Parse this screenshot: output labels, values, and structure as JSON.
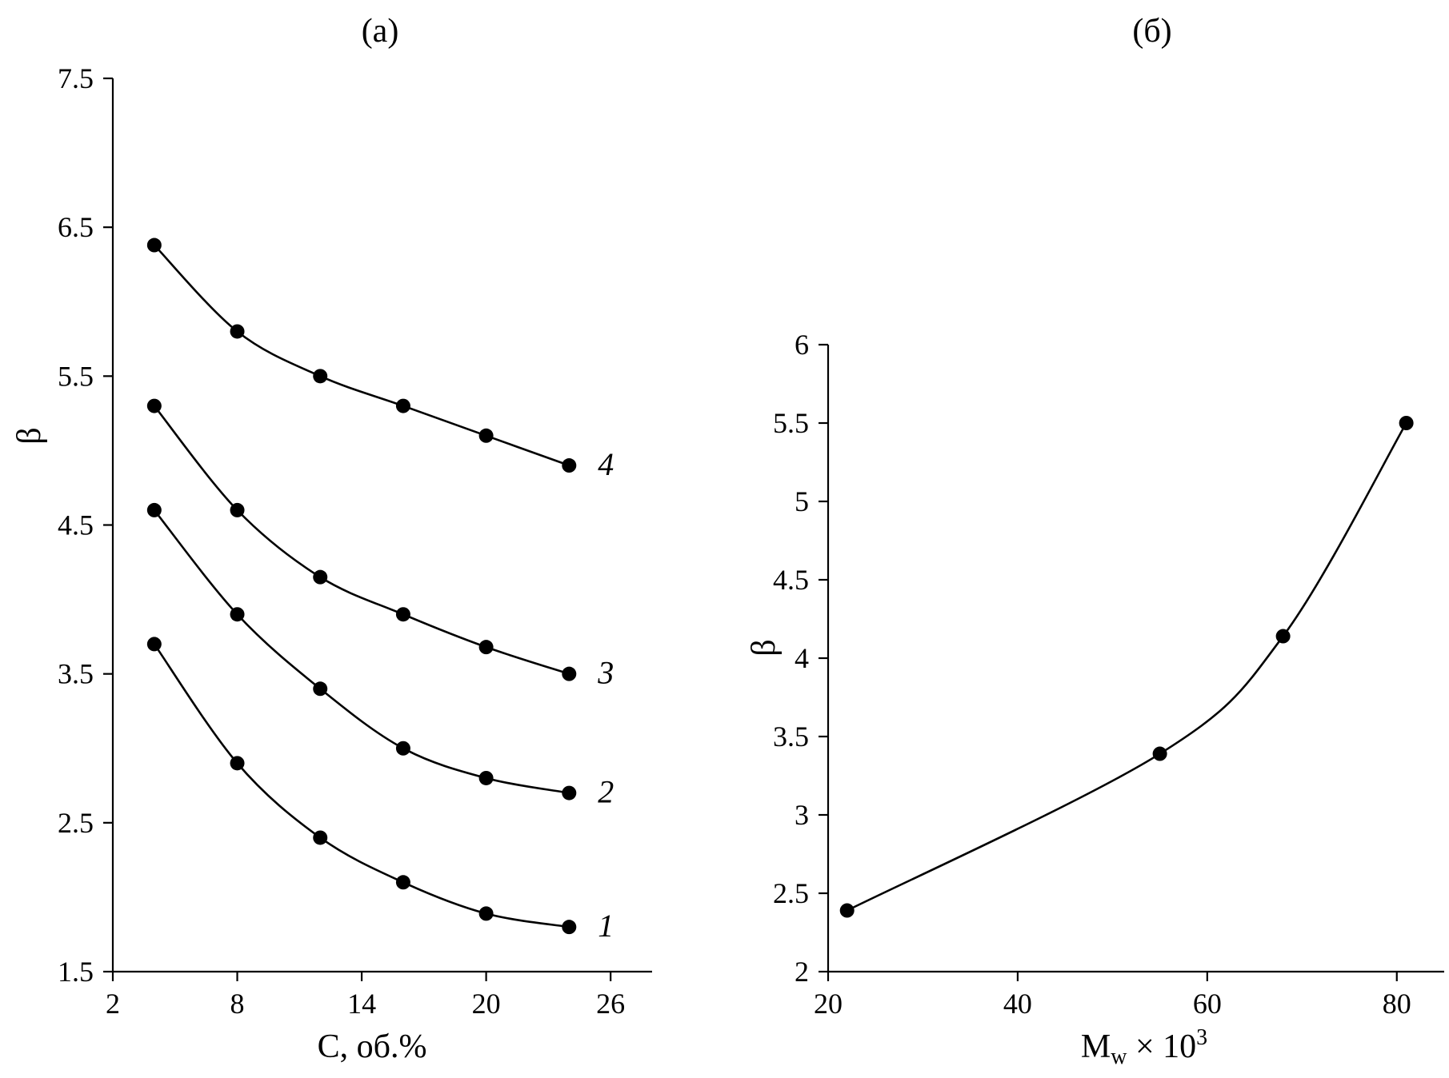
{
  "chart_data": [
    {
      "type": "line",
      "title": "(а)",
      "xlabel": "C, об.%",
      "ylabel": "β",
      "xlim": [
        2,
        28
      ],
      "ylim": [
        1.5,
        7.5
      ],
      "xticks": [
        2,
        8,
        14,
        20,
        26
      ],
      "yticks": [
        1.5,
        2.5,
        3.5,
        4.5,
        5.5,
        6.5,
        7.5
      ],
      "xtick_labels": [
        "2",
        "8",
        "14",
        "20",
        "26"
      ],
      "ytick_labels": [
        "1.5",
        "2.5",
        "3.5",
        "4.5",
        "5.5",
        "6.5",
        "7.5"
      ],
      "x": [
        4,
        8,
        12,
        16,
        20,
        24
      ],
      "series": [
        {
          "name": "1",
          "values": [
            3.7,
            2.9,
            2.4,
            2.1,
            1.89,
            1.8
          ]
        },
        {
          "name": "2",
          "values": [
            4.6,
            3.9,
            3.4,
            3.0,
            2.8,
            2.7
          ]
        },
        {
          "name": "3",
          "values": [
            5.3,
            4.6,
            4.15,
            3.9,
            3.68,
            3.5
          ]
        },
        {
          "name": "4",
          "values": [
            6.38,
            5.8,
            5.5,
            5.3,
            5.1,
            4.9
          ]
        }
      ],
      "grid": false,
      "legend": "none"
    },
    {
      "type": "line",
      "title": "(б)",
      "xlabel": "M",
      "xlabel_sub": "w",
      "xlabel_tail": " × 10",
      "xlabel_sup": "3",
      "ylabel": "β",
      "xlim": [
        20,
        85
      ],
      "ylim": [
        2,
        6
      ],
      "xticks": [
        20,
        40,
        60,
        80
      ],
      "yticks": [
        2,
        2.5,
        3,
        3.5,
        4,
        4.5,
        5,
        5.5,
        6
      ],
      "xtick_labels": [
        "20",
        "40",
        "60",
        "80"
      ],
      "ytick_labels": [
        "2",
        "2.5",
        "3",
        "3.5",
        "4",
        "4.5",
        "5",
        "5.5",
        "6"
      ],
      "x": [
        22,
        55,
        68,
        81
      ],
      "series": [
        {
          "name": "",
          "values": [
            2.39,
            3.39,
            4.14,
            5.5
          ]
        }
      ],
      "grid": false,
      "legend": "none"
    }
  ]
}
